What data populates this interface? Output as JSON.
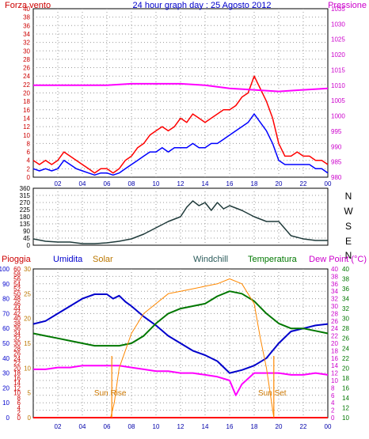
{
  "chart_data": [
    {
      "id": "wind-pressure",
      "type": "line",
      "title": "24 hour graph day : 25 Agosto 2012",
      "left_axis_label": "Forza vento",
      "right_axis_label": "Pressione",
      "x_ticks": [
        "02",
        "04",
        "06",
        "08",
        "10",
        "12",
        "14",
        "16",
        "18",
        "20",
        "22",
        "00"
      ],
      "x_range": [
        0,
        24
      ],
      "left_ylim": [
        0,
        40
      ],
      "left_ticks": [
        0,
        2,
        4,
        6,
        8,
        10,
        12,
        14,
        16,
        18,
        20,
        22,
        24,
        26,
        28,
        30,
        32,
        34,
        36,
        38,
        40
      ],
      "right_ylim": [
        980,
        1035
      ],
      "right_ticks": [
        980,
        985,
        990,
        995,
        1000,
        1005,
        1010,
        1015,
        1020,
        1025,
        1030,
        1035
      ],
      "grid": true,
      "series": [
        {
          "axis": "left",
          "color": "#ff0000",
          "x": [
            0,
            0.5,
            1,
            1.5,
            2,
            2.5,
            3,
            3.5,
            4,
            4.5,
            5,
            5.5,
            6,
            6.5,
            7,
            7.5,
            8,
            8.5,
            9,
            9.5,
            10,
            10.5,
            11,
            11.5,
            12,
            12.5,
            13,
            13.5,
            14,
            14.5,
            15,
            15.5,
            16,
            16.5,
            17,
            17.5,
            18,
            18.5,
            19,
            19.5,
            20,
            20.5,
            21,
            21.5,
            22,
            22.5,
            23,
            23.5,
            24
          ],
          "y": [
            4,
            3,
            4,
            3,
            4,
            6,
            5,
            4,
            3,
            2,
            1,
            2,
            2,
            1,
            2,
            4,
            5,
            7,
            8,
            10,
            11,
            12,
            11,
            12,
            14,
            13,
            15,
            14,
            13,
            14,
            15,
            16,
            16,
            17,
            19,
            20,
            24,
            21,
            18,
            14,
            8,
            5,
            5,
            6,
            5,
            5,
            4,
            4,
            3
          ]
        },
        {
          "axis": "left",
          "color": "#0000ff",
          "x": [
            0,
            0.5,
            1,
            1.5,
            2,
            2.5,
            3,
            3.5,
            4,
            4.5,
            5,
            5.5,
            6,
            6.5,
            7,
            7.5,
            8,
            8.5,
            9,
            9.5,
            10,
            10.5,
            11,
            11.5,
            12,
            12.5,
            13,
            13.5,
            14,
            14.5,
            15,
            15.5,
            16,
            16.5,
            17,
            17.5,
            18,
            18.5,
            19,
            19.5,
            20,
            20.5,
            21,
            21.5,
            22,
            22.5,
            23,
            23.5,
            24
          ],
          "y": [
            2,
            1.5,
            2,
            1.5,
            2,
            4,
            3,
            2,
            1.5,
            1,
            0.5,
            1,
            1,
            0.5,
            1,
            2,
            3,
            4,
            5,
            6,
            6,
            7,
            6,
            7,
            7,
            7,
            8,
            7,
            7,
            8,
            8,
            9,
            10,
            11,
            12,
            13,
            15,
            13,
            11,
            8,
            4,
            3,
            3,
            3,
            3,
            3,
            2,
            2,
            1
          ]
        },
        {
          "axis": "right",
          "color": "#ff00ff",
          "x": [
            0,
            2,
            4,
            6,
            8,
            10,
            12,
            14,
            16,
            18,
            20,
            22,
            24
          ],
          "y": [
            1010,
            1010,
            1010,
            1010,
            1010.5,
            1010.5,
            1010.5,
            1010,
            1009,
            1008.5,
            1008,
            1008.5,
            1009
          ]
        }
      ]
    },
    {
      "id": "wind-direction",
      "type": "line",
      "x_range": [
        0,
        24
      ],
      "ylim": [
        0,
        360
      ],
      "y_ticks": [
        0,
        45,
        90,
        135,
        180,
        225,
        270,
        315,
        360
      ],
      "right_labels": [
        "N",
        "W",
        "S",
        "E",
        "N"
      ],
      "grid": true,
      "series": [
        {
          "color": "#1f3a3a",
          "x": [
            0,
            1,
            2,
            3,
            4,
            5,
            6,
            7,
            8,
            9,
            10,
            11,
            12,
            12.5,
            13,
            13.5,
            14,
            14.5,
            15,
            15.5,
            16,
            17,
            18,
            19,
            20,
            21,
            22,
            23,
            24
          ],
          "y": [
            40,
            25,
            20,
            20,
            10,
            10,
            15,
            25,
            40,
            70,
            110,
            150,
            180,
            240,
            280,
            250,
            270,
            220,
            270,
            230,
            250,
            220,
            180,
            150,
            150,
            60,
            40,
            30,
            30
          ]
        }
      ]
    },
    {
      "id": "weather",
      "type": "line",
      "series_labels": [
        "Pioggia",
        "Umidita",
        "Solar",
        "Windchill",
        "Temperatura",
        "Dew Point (°C)"
      ],
      "annotations": [
        "Sun Rise",
        "Sun Set"
      ],
      "sun_rise_x": 6.4,
      "sun_set_x": 19.6,
      "x_ticks": [
        "02",
        "04",
        "06",
        "08",
        "10",
        "12",
        "14",
        "16",
        "18",
        "20",
        "22",
        "00"
      ],
      "x_range": [
        0,
        24
      ],
      "humidity_ylim": [
        0,
        100
      ],
      "humidity_ticks": [
        0,
        10,
        20,
        30,
        40,
        50,
        60,
        70,
        80,
        90,
        100
      ],
      "rain_ticks": [
        0,
        2,
        4,
        6,
        8,
        10,
        12,
        14,
        16,
        18,
        20,
        22,
        24,
        26,
        28,
        30,
        32,
        34,
        36,
        38,
        40,
        42,
        44,
        46,
        48,
        50,
        52,
        54,
        56,
        58,
        60
      ],
      "rain_ylim": [
        0,
        60
      ],
      "dew_ticks": [
        0,
        2,
        4,
        6,
        8,
        10,
        12,
        14,
        16,
        18,
        20,
        22,
        24,
        26,
        28,
        30,
        32,
        34,
        36,
        38,
        40
      ],
      "dew_ylim": [
        0,
        40
      ],
      "solar_ticks": [
        0,
        5,
        10,
        15,
        20,
        25,
        30
      ],
      "solar_ylim": [
        0,
        30
      ],
      "temp_ticks": [
        10,
        12,
        14,
        16,
        18,
        20,
        22,
        24,
        26,
        28,
        30,
        32,
        34,
        36,
        38,
        40
      ],
      "temp_ylim": [
        10,
        40
      ],
      "grid": true,
      "series": [
        {
          "name": "Umidita",
          "axis": "humidity",
          "color": "#0000cc",
          "x": [
            0,
            1,
            2,
            3,
            4,
            5,
            6,
            6.5,
            7,
            7.5,
            8,
            9,
            10,
            11,
            12,
            13,
            14,
            15,
            16,
            17,
            18,
            19,
            20,
            21,
            22,
            23,
            24
          ],
          "y": [
            63,
            65,
            70,
            75,
            80,
            83,
            83,
            80,
            82,
            78,
            75,
            68,
            62,
            55,
            50,
            45,
            42,
            38,
            30,
            32,
            35,
            40,
            50,
            58,
            60,
            62,
            63
          ]
        },
        {
          "name": "Temperatura",
          "axis": "temperature",
          "color": "#007700",
          "x": [
            0,
            1,
            2,
            3,
            4,
            5,
            6,
            7,
            8,
            9,
            10,
            11,
            12,
            13,
            14,
            15,
            16,
            17,
            18,
            19,
            20,
            21,
            22,
            23,
            24
          ],
          "y": [
            27,
            26.5,
            26,
            25.5,
            25,
            24.5,
            24.5,
            24.5,
            25,
            26.5,
            29,
            31,
            32,
            32.5,
            33,
            34.5,
            35.5,
            35,
            33.5,
            31,
            29,
            28,
            28,
            27.5,
            27
          ]
        },
        {
          "name": "Dew Point (°C)",
          "axis": "dew",
          "color": "#ff00ff",
          "x": [
            0,
            1,
            2,
            3,
            4,
            5,
            6,
            7,
            8,
            9,
            10,
            11,
            12,
            13,
            14,
            15,
            16,
            16.5,
            17,
            18,
            19,
            20,
            21,
            22,
            23,
            24
          ],
          "y": [
            13,
            13,
            13.5,
            13.5,
            14,
            14,
            14,
            14,
            13.5,
            13,
            12.5,
            12.5,
            12,
            12,
            11.5,
            11,
            10,
            6,
            9,
            12,
            12,
            12,
            11.5,
            11.5,
            12,
            11.5
          ]
        },
        {
          "name": "Solar",
          "axis": "solar",
          "color": "#ff8800",
          "x": [
            0,
            6.3,
            6.6,
            7,
            8,
            9,
            10,
            11,
            12,
            13,
            14,
            15,
            16,
            17,
            18,
            18.5,
            19,
            19.3,
            19.6,
            20,
            24
          ],
          "y": [
            0,
            0,
            3,
            10,
            17,
            21,
            23,
            25,
            25.5,
            26,
            26.5,
            27,
            28,
            27,
            23,
            16,
            10,
            5,
            0,
            0,
            0
          ]
        },
        {
          "name": "Pioggia",
          "axis": "rain",
          "color": "#ff0000",
          "x": [
            0,
            24
          ],
          "y": [
            0,
            0
          ]
        }
      ]
    }
  ]
}
